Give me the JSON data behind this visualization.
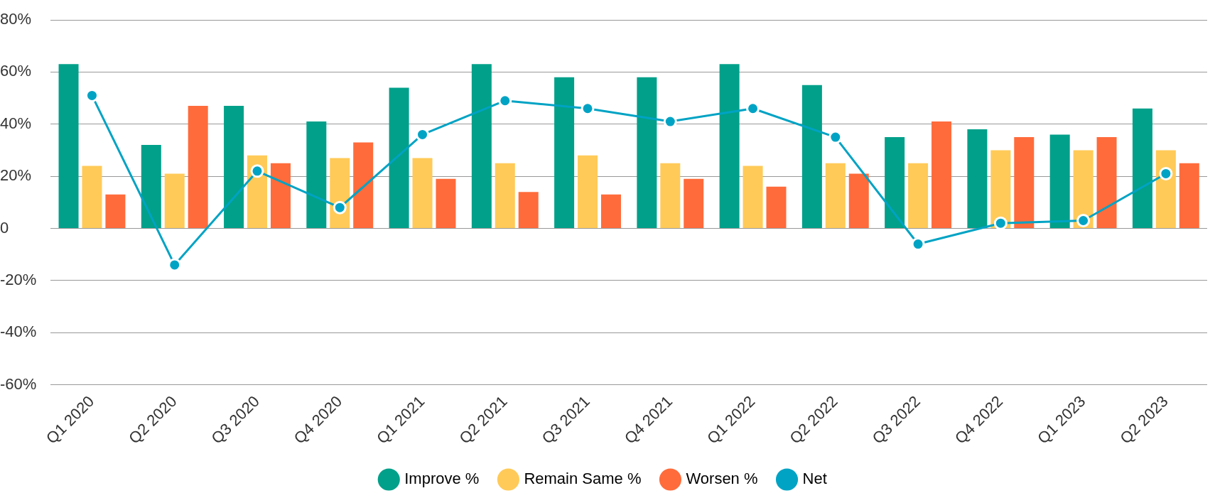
{
  "chart_data": {
    "type": "bar",
    "categories": [
      "Q1 2020",
      "Q2 2020",
      "Q3 2020",
      "Q4 2020",
      "Q1 2021",
      "Q2 2021",
      "Q3 2021",
      "Q4 2021",
      "Q1 2022",
      "Q2 2022",
      "Q3 2022",
      "Q4 2022",
      "Q1 2023",
      "Q2 2023"
    ],
    "series": [
      {
        "name": "Improve %",
        "color": "#00a08a",
        "values": [
          63,
          32,
          47,
          41,
          54,
          63,
          58,
          58,
          63,
          55,
          35,
          38,
          36,
          46
        ]
      },
      {
        "name": "Remain Same %",
        "color": "#ffca58",
        "values": [
          24,
          21,
          28,
          27,
          27,
          25,
          28,
          25,
          24,
          25,
          25,
          30,
          30,
          30
        ]
      },
      {
        "name": "Worsen %",
        "color": "#ff6b3b",
        "values": [
          13,
          47,
          25,
          33,
          19,
          14,
          13,
          19,
          16,
          21,
          41,
          35,
          35,
          25
        ]
      },
      {
        "name": "Net",
        "type": "line",
        "color": "#00a3c4",
        "values": [
          51,
          -14,
          22,
          8,
          36,
          49,
          46,
          41,
          46,
          35,
          -6,
          2,
          3,
          21
        ]
      }
    ],
    "ylim": [
      -60,
      80
    ],
    "yticks": [
      {
        "value": -60,
        "label": "-60%"
      },
      {
        "value": -40,
        "label": "-40%"
      },
      {
        "value": -20,
        "label": "-20%"
      },
      {
        "value": 0,
        "label": "0"
      },
      {
        "value": 20,
        "label": "20%"
      },
      {
        "value": 40,
        "label": "40%"
      },
      {
        "value": 60,
        "label": "60%"
      },
      {
        "value": 80,
        "label": "80%"
      }
    ],
    "grid": "y",
    "legend": "bottom",
    "marker": "circle",
    "line_style": "solid"
  }
}
